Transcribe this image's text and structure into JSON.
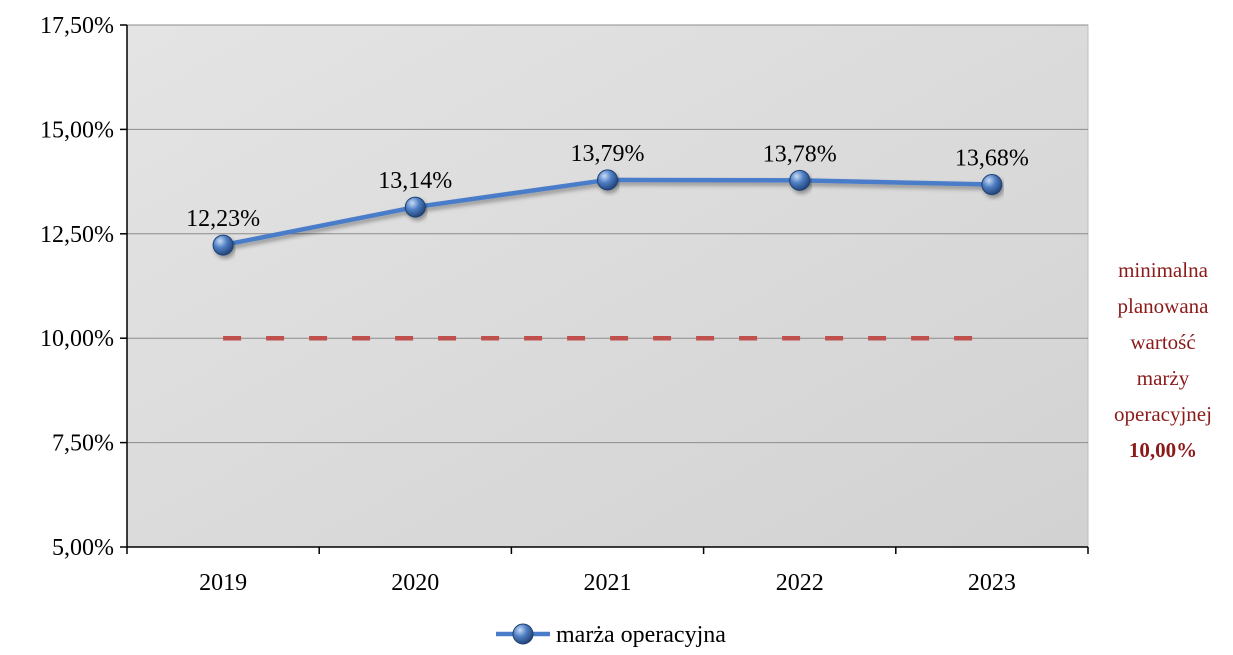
{
  "chart_data": {
    "type": "line",
    "categories": [
      "2019",
      "2020",
      "2021",
      "2022",
      "2023"
    ],
    "series": [
      {
        "name": "marża operacyjna",
        "values": [
          12.23,
          13.14,
          13.79,
          13.78,
          13.68
        ],
        "labels": [
          "12,23%",
          "13,14%",
          "13,79%",
          "13,78%",
          "13,68%"
        ],
        "color": "#4a7cc9"
      }
    ],
    "reference_line": {
      "value": 10.0,
      "style": "dashed",
      "color": "#c0504d"
    },
    "ylim": [
      5,
      17.5
    ],
    "y_ticks": [
      5,
      7.5,
      10,
      12.5,
      15,
      17.5
    ],
    "y_tick_labels": [
      "5,00%",
      "7,50%",
      "10,00%",
      "12,50%",
      "15,00%",
      "17,50%"
    ],
    "grid": true,
    "legend_position": "bottom",
    "plot_background": "#d9d9d9"
  },
  "annotation": {
    "lines": [
      "minimalna",
      "planowana",
      "wartość",
      "marży",
      "operacyjnej"
    ],
    "value": "10,00%",
    "color": "#8b1a1a"
  }
}
